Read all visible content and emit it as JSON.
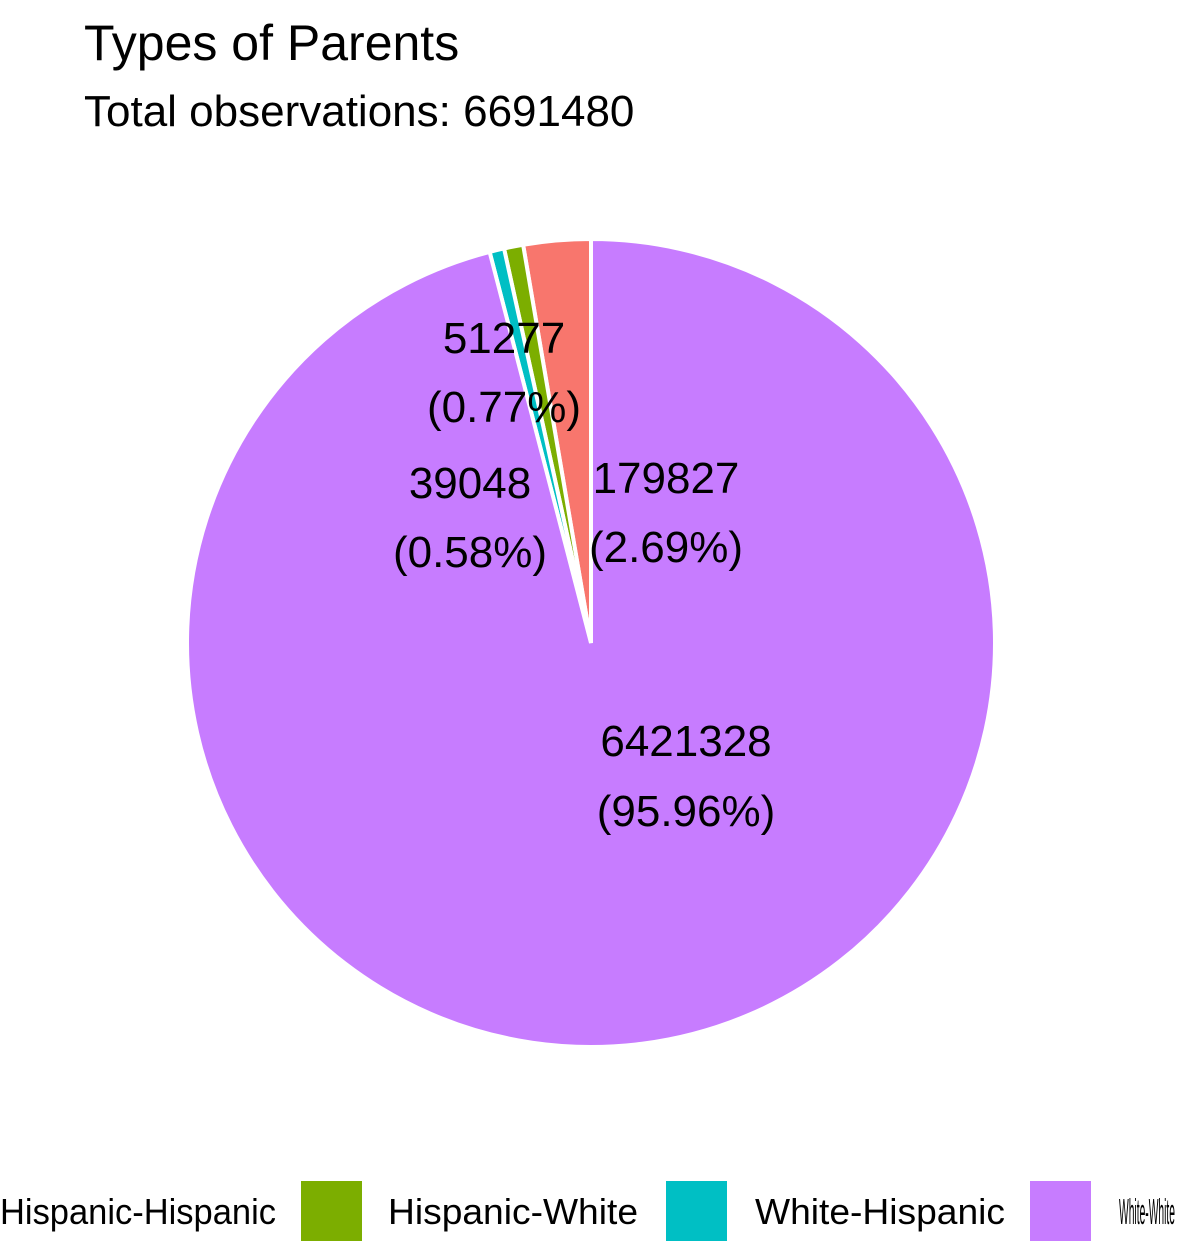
{
  "chart_data": {
    "type": "pie",
    "title": "Types of Parents",
    "subtitle": "Total observations: 6691480",
    "slices": [
      {
        "name": "Hispanic-Hispanic",
        "value": 179827,
        "label": "179827",
        "percent": "(2.69%)",
        "color": "#F8766D"
      },
      {
        "name": "Hispanic-White",
        "value": 51277,
        "label": "51277",
        "percent": "(0.77%)",
        "color": "#7CAE00"
      },
      {
        "name": "White-Hispanic",
        "value": 39048,
        "label": "39048",
        "percent": "(0.58%)",
        "color": "#00BFC4"
      },
      {
        "name": "White-White",
        "value": 6421328,
        "label": "6421328",
        "percent": "(95.96%)",
        "color": "#C77CFF"
      }
    ],
    "legend_position": "bottom"
  }
}
